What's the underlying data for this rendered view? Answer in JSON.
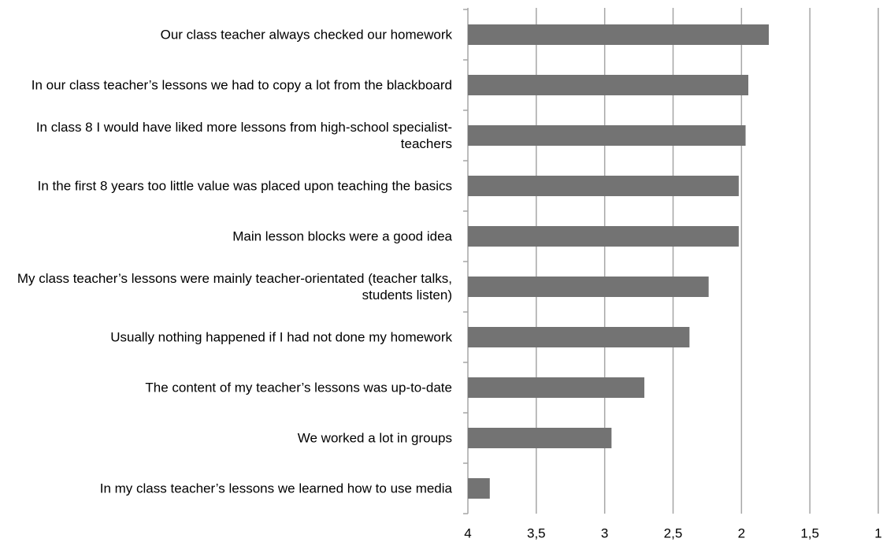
{
  "chart_data": {
    "type": "bar",
    "orientation": "horizontal",
    "categories": [
      "Our class teacher always checked our homework",
      "In our class teacher’s lessons we had to copy a lot from the blackboard",
      "In class 8 I would have liked more lessons from high-school specialist-teachers",
      "In the first 8 years too little value was placed upon teaching the basics",
      "Main lesson blocks were a good idea",
      "My class teacher’s lessons were mainly teacher-orientated (teacher talks, students listen)",
      "Usually nothing happened if I had not done my homework",
      "The content of my teacher’s lessons was up-to-date",
      "We worked a lot in groups",
      "In my class teacher’s lessons we learned how to use media"
    ],
    "values": [
      1.8,
      1.95,
      1.97,
      2.02,
      2.02,
      2.24,
      2.38,
      2.71,
      2.95,
      3.84
    ],
    "color": "#737373",
    "xlim": [
      4,
      1
    ],
    "xticks": [
      4,
      {
        "value": 3.5,
        "label": "3,5"
      },
      3,
      {
        "value": 2.5,
        "label": "2,5"
      },
      2,
      {
        "value": 1.5,
        "label": "1,5"
      },
      1
    ],
    "grid": true
  }
}
